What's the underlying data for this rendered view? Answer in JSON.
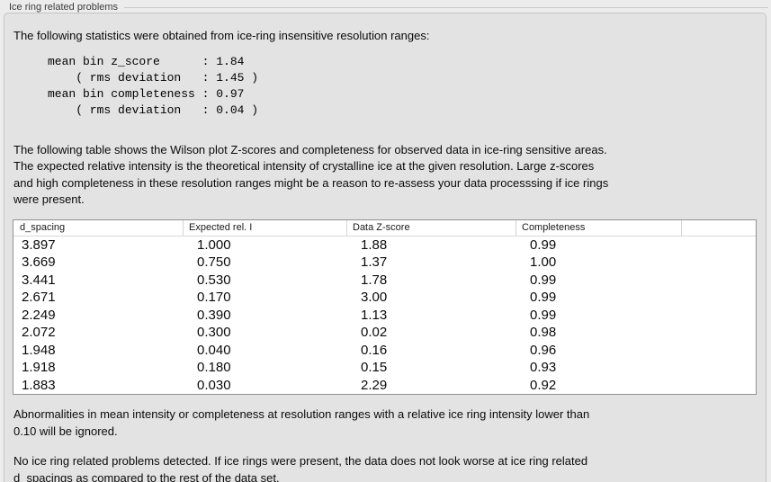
{
  "groupbox": {
    "title": "Ice ring related problems"
  },
  "panel": {
    "intro": "The following statistics were obtained from ice-ring insensitive resolution ranges:",
    "stats_lines": [
      "mean bin z_score      : 1.84",
      "    ( rms deviation   : 1.45 )",
      "mean bin completeness : 0.97",
      "    ( rms deviation   : 0.04 )"
    ],
    "table_description": "The following table shows the Wilson plot Z-scores and completeness for observed data in ice-ring sensitive areas.\nThe expected relative intensity is the theoretical intensity of crystalline ice at the given resolution. Large z-scores\nand high completeness in these resolution ranges might be a reason to re-assess your data processsing if ice rings\nwere present.",
    "ignore_note": "Abnormalities in mean intensity or completeness at resolution ranges with a relative ice ring intensity lower than\n0.10 will be ignored.",
    "conclusion": "No ice ring related problems detected. If ice rings were present, the data does not look worse at ice ring related\nd_spacings as compared to the rest of the data set."
  },
  "table": {
    "columns": [
      "d_spacing",
      "Expected rel. I",
      "Data Z-score",
      "Completeness",
      ""
    ],
    "rows": [
      [
        "3.897",
        "1.000",
        "1.88",
        "0.99"
      ],
      [
        "3.669",
        "0.750",
        "1.37",
        "1.00"
      ],
      [
        "3.441",
        "0.530",
        "1.78",
        "0.99"
      ],
      [
        "2.671",
        "0.170",
        "3.00",
        "0.99"
      ],
      [
        "2.249",
        "0.390",
        "1.13",
        "0.99"
      ],
      [
        "2.072",
        "0.300",
        "0.02",
        "0.98"
      ],
      [
        "1.948",
        "0.040",
        "0.16",
        "0.96"
      ],
      [
        "1.918",
        "0.180",
        "0.15",
        "0.93"
      ],
      [
        "1.883",
        "0.030",
        "2.29",
        "0.92"
      ]
    ]
  },
  "colors": {
    "outer_background": "#ececec",
    "panel_background": "#e3e3e3",
    "panel_border": "#c5c5c5",
    "table_background": "#ffffff",
    "table_border": "#919191",
    "header_separator": "#d4d4d4",
    "text": "#0a0a0a",
    "label_text": "#3b3b3b"
  }
}
